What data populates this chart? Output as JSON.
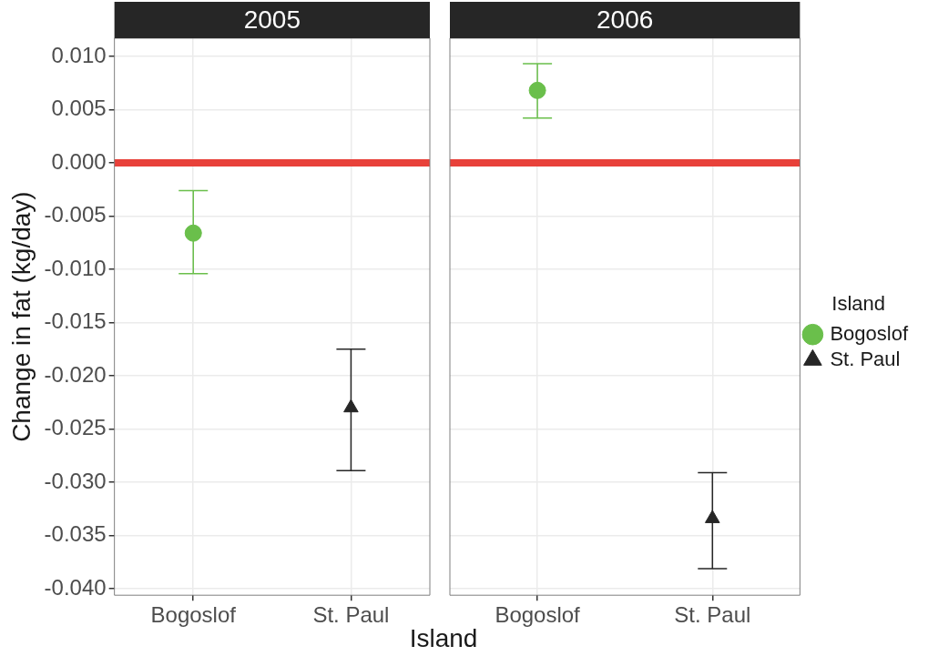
{
  "chart_data": [
    {
      "type": "scatter",
      "title": "2005",
      "ylabel": "Change in fat (kg/day)",
      "xlabel": "Island",
      "categories": [
        "Bogoslof",
        "St. Paul"
      ],
      "ylim": [
        -0.0406,
        0.0117
      ],
      "yticks": [
        {
          "value": -0.04,
          "label": "-0.040"
        },
        {
          "value": -0.035,
          "label": "-0.035"
        },
        {
          "value": -0.03,
          "label": "-0.030"
        },
        {
          "value": -0.025,
          "label": "-0.025"
        },
        {
          "value": -0.02,
          "label": "-0.020"
        },
        {
          "value": -0.015,
          "label": "-0.015"
        },
        {
          "value": -0.01,
          "label": "-0.010"
        },
        {
          "value": -0.005,
          "label": "-0.005"
        },
        {
          "value": 0,
          "label": "0.000"
        },
        {
          "value": 0.005,
          "label": "0.005"
        },
        {
          "value": 0.01,
          "label": "0.010"
        }
      ],
      "grid": true,
      "legend": false,
      "series": [
        {
          "color": "#6abf4b",
          "marker": "circle",
          "values": [
            -0.0066,
            null
          ],
          "errors": [
            [
              -0.0104,
              -0.0026
            ],
            null
          ]
        },
        {
          "color": "#262626",
          "marker": "triangle",
          "values": [
            null,
            -0.023
          ],
          "errors": [
            null,
            [
              -0.0289,
              -0.0175
            ]
          ]
        }
      ],
      "ref_lines": [
        {
          "axis": "y",
          "value": 0,
          "color": "#e8413a"
        }
      ]
    },
    {
      "type": "scatter",
      "title": "2006",
      "categories": [
        "Bogoslof",
        "St. Paul"
      ],
      "ylim": [
        -0.0406,
        0.0117
      ],
      "yticks": [
        -0.04,
        -0.035,
        -0.03,
        -0.025,
        -0.02,
        -0.015,
        -0.01,
        -0.005,
        0,
        0.005,
        0.01
      ],
      "tick_labels": "x",
      "grid": true,
      "legend": "right",
      "legend_title": "Island",
      "series": [
        {
          "name": "Bogoslof",
          "color": "#6abf4b",
          "marker": "circle",
          "values": [
            0.0068,
            null
          ],
          "errors": [
            [
              0.0042,
              0.0093
            ],
            null
          ]
        },
        {
          "name": "St. Paul",
          "color": "#262626",
          "marker": "triangle",
          "values": [
            null,
            -0.0334
          ],
          "errors": [
            null,
            [
              -0.0381,
              -0.0291
            ]
          ]
        }
      ],
      "ref_lines": [
        {
          "axis": "y",
          "value": 0,
          "color": "#e8413a"
        }
      ]
    }
  ]
}
